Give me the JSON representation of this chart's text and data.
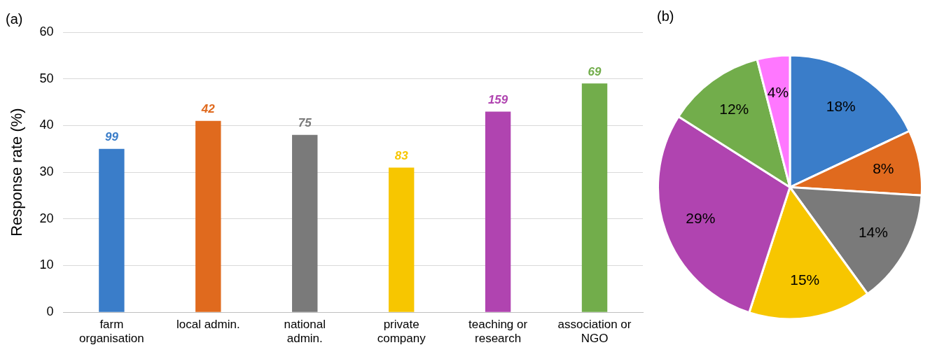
{
  "chart_data": [
    {
      "type": "bar",
      "title": "(a)",
      "ylabel": "Response rate (%)",
      "categories": [
        "farm organisation",
        "local admin.",
        "national admin.",
        "private company",
        "teaching or research",
        "association or NGO"
      ],
      "values": [
        35,
        41,
        38,
        31,
        43,
        49
      ],
      "colors": [
        "#3a7dc9",
        "#e06a1e",
        "#7a7a7a",
        "#f7c600",
        "#b044b0",
        "#72ad4b"
      ],
      "ylim": [
        0,
        60
      ],
      "yticks": [
        0,
        10,
        20,
        30,
        40,
        50,
        60
      ],
      "grid": "y",
      "legend": false,
      "annotations": [
        {
          "text": "99",
          "x": "farm organisation",
          "y": 35
        },
        {
          "text": "42",
          "x": "local admin.",
          "y": 41
        },
        {
          "text": "75",
          "x": "national admin.",
          "y": 38
        },
        {
          "text": "83",
          "x": "private company",
          "y": 31
        },
        {
          "text": "159",
          "x": "teaching or research",
          "y": 43
        },
        {
          "text": "69",
          "x": "association or NGO",
          "y": 49
        }
      ]
    },
    {
      "type": "pie",
      "title": "(b)",
      "categories": [
        null,
        null,
        null,
        null,
        null,
        null,
        null
      ],
      "values": [
        18,
        8,
        14,
        15,
        29,
        12,
        4
      ],
      "colors": [
        "#3a7dc9",
        "#e06a1e",
        "#7a7a7a",
        "#f7c600",
        "#b044b0",
        "#72ad4b",
        "#ff77ff"
      ],
      "value_labels": [
        "18%",
        "8%",
        "14%",
        "15%",
        "29%",
        "12%",
        "4%"
      ],
      "legend": false
    }
  ]
}
